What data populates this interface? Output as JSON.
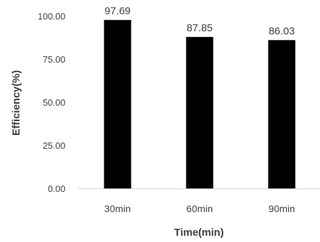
{
  "chart_data": {
    "type": "bar",
    "title": "",
    "xlabel": "Time(min)",
    "ylabel": "Efficiency(%)",
    "categories": [
      "30min",
      "60min",
      "90min"
    ],
    "values": [
      97.69,
      87.85,
      86.03
    ],
    "value_labels": [
      "97.69",
      "87.85",
      "86.03"
    ],
    "ylim": [
      0,
      100
    ],
    "y_ticks": [
      0,
      25,
      50,
      75,
      100
    ],
    "y_tick_labels": [
      "0.00",
      "25.00",
      "50.00",
      "75.00",
      "100.00"
    ],
    "grid": false,
    "legend": "none",
    "bar_color": "#000000",
    "axis_color": "#d9d9d9",
    "text_color": "#404040"
  }
}
